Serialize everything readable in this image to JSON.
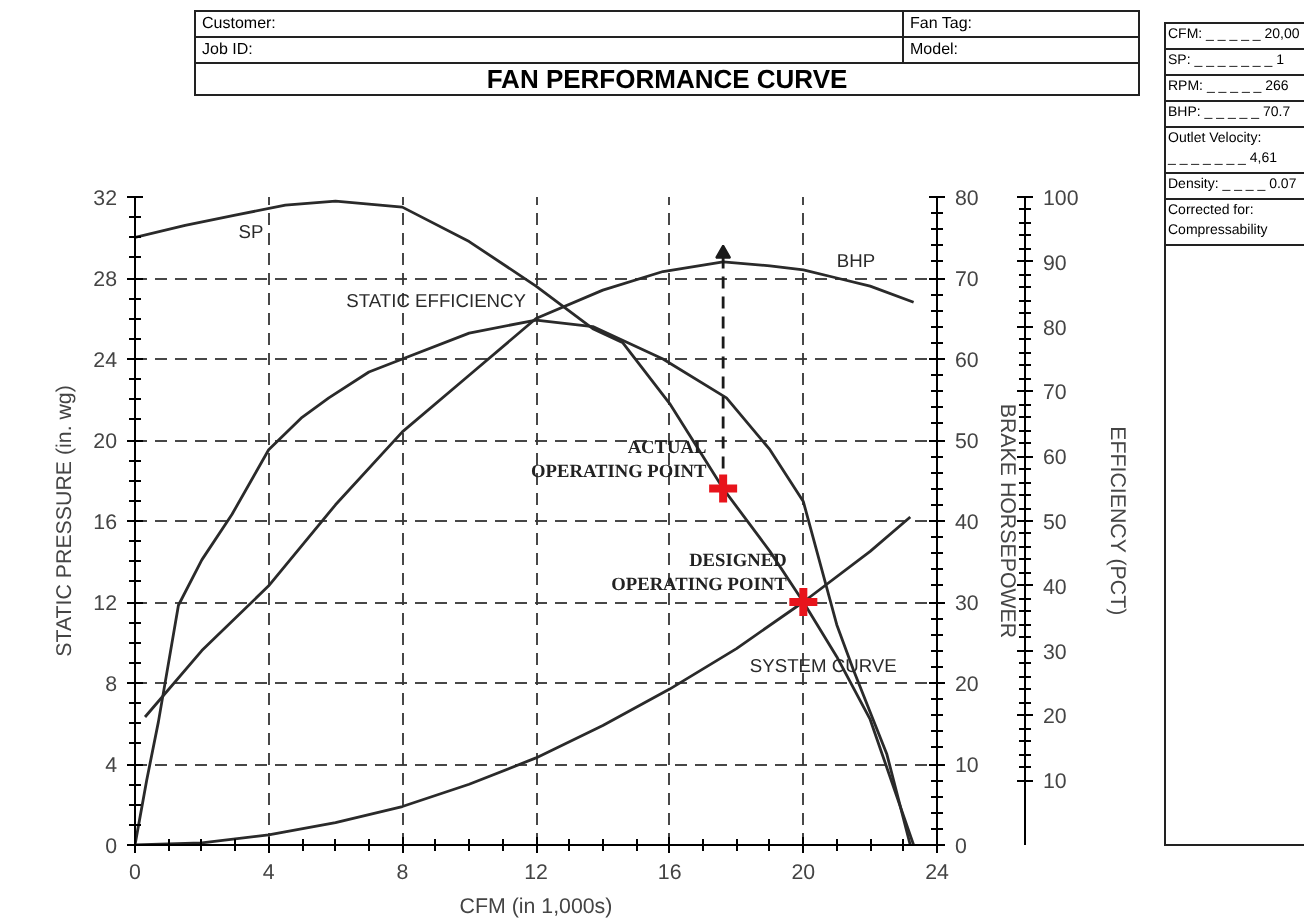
{
  "chart_data": {
    "type": "line",
    "title": "FAN PERFORMANCE CURVE",
    "xlabel": "CFM (in 1,000s)",
    "ylabel": "STATIC PRESSURE (in. wg)",
    "y2label": "BRAKE HORSEPOWER",
    "y3label": "EFFICIENCY (PCT)",
    "xlim": [
      0,
      24
    ],
    "xticks": [
      0,
      4,
      8,
      12,
      16,
      20,
      24
    ],
    "ylim": [
      0,
      32
    ],
    "yticks": [
      0,
      4,
      8,
      12,
      16,
      20,
      24,
      28,
      32
    ],
    "y2lim": [
      0,
      80
    ],
    "y2ticks": [
      0,
      10,
      20,
      30,
      40,
      50,
      60,
      70,
      80
    ],
    "y3lim": [
      0,
      100
    ],
    "y3ticks": [
      10,
      20,
      30,
      40,
      50,
      60,
      70,
      80,
      90,
      100
    ],
    "grid": true,
    "series": [
      {
        "name": "SP",
        "axis": "y",
        "color": "#2a2a2a",
        "x": [
          0,
          1.5,
          3,
          4.5,
          6,
          8,
          10,
          12,
          13.7,
          14.6,
          16,
          17.6,
          19,
          20,
          21,
          22,
          23.3
        ],
        "values": [
          30,
          30.6,
          31.1,
          31.6,
          31.8,
          31.5,
          29.8,
          27.6,
          25.5,
          24.8,
          21.8,
          17.6,
          14.5,
          12,
          9.3,
          6.2,
          0
        ]
      },
      {
        "name": "STATIC EFFICIENCY",
        "axis": "y3",
        "color": "#2a2a2a",
        "x": [
          0,
          0.35,
          0.7,
          1.3,
          2,
          2.9,
          4,
          5,
          5.8,
          7,
          8,
          10,
          12,
          13.7,
          15.8,
          17.7,
          19,
          20,
          21,
          21.5,
          22.5,
          23.2
        ],
        "values": [
          0,
          10,
          19,
          37,
          44,
          51,
          61,
          66,
          69,
          73,
          75,
          79,
          81,
          80,
          75,
          69,
          61,
          53,
          34,
          27,
          14,
          0
        ]
      },
      {
        "name": "BHP",
        "axis": "y2",
        "color": "#2a2a2a",
        "x": [
          0.3,
          2,
          4,
          6,
          8,
          10,
          12,
          14,
          15.8,
          17.6,
          19,
          20,
          21,
          22,
          23.3
        ],
        "values": [
          15.8,
          24,
          32,
          42,
          51,
          58,
          65,
          68.5,
          70.8,
          72,
          71.5,
          71,
          70,
          69,
          67
        ]
      },
      {
        "name": "SYSTEM CURVE",
        "axis": "y",
        "color": "#2a2a2a",
        "x": [
          0,
          2,
          4,
          6,
          8,
          10,
          12,
          14,
          16,
          18,
          20,
          22,
          23.2
        ],
        "values": [
          0,
          0.1,
          0.5,
          1.1,
          1.9,
          3,
          4.3,
          5.9,
          7.7,
          9.7,
          12,
          14.5,
          16.2
        ]
      },
      {
        "type": "line",
        "axis": "y2",
        "color": "#1a1a1a",
        "line_style": "dashed",
        "x": [
          17.6,
          17.6
        ],
        "values": [
          44,
          73
        ]
      },
      {
        "type": "scatter",
        "axis": "y",
        "color": "#e8141c",
        "marker": "cross",
        "x": [
          17.6,
          20
        ],
        "values": [
          17.6,
          12
        ]
      }
    ],
    "annotations": [
      {
        "text": "ACTUAL\nOPERATING POINT",
        "x": 17.6,
        "y": 17.6
      },
      {
        "text": "DESIGNED\nOPERATING POINT",
        "x": 20,
        "y": 12
      },
      "Customer:",
      "Job ID:",
      "Fan Tag:",
      "Model:",
      "CFM: _ _ _ _ _ 20,00",
      "SP: _ _ _ _ _ _ _ 1",
      "RPM: _ _ _ _ _ 266",
      "BHP: _ _ _ _ _ 70.7",
      "Outlet Velocity:\n_ _ _ _ _ _ _ 4,61",
      "Density: _ _ _ _ 0.07",
      "Corrected for:\nCompressability"
    ]
  }
}
